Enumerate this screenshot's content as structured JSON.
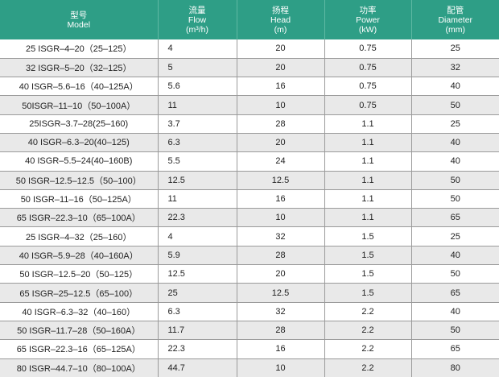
{
  "headers": {
    "model": {
      "cn": "型号",
      "en": "Model",
      "unit": ""
    },
    "flow": {
      "cn": "流量",
      "en": "Flow",
      "unit": "(m³/h)"
    },
    "head": {
      "cn": "扬程",
      "en": "Head",
      "unit": "(m)"
    },
    "power": {
      "cn": "功率",
      "en": "Power",
      "unit": "(kW)"
    },
    "diameter": {
      "cn": "配管",
      "en": "Diameter",
      "unit": "(mm)"
    }
  },
  "rows": [
    {
      "model": "25 ISGR–4–20（25–125）",
      "flow": "4",
      "head": "20",
      "power": "0.75",
      "diameter": "25"
    },
    {
      "model": "32 ISGR–5–20（32–125）",
      "flow": "5",
      "head": "20",
      "power": "0.75",
      "diameter": "32"
    },
    {
      "model": "40 ISGR–5.6–16（40–125A）",
      "flow": "5.6",
      "head": "16",
      "power": "0.75",
      "diameter": "40"
    },
    {
      "model": "50ISGR–11–10（50–100A）",
      "flow": "11",
      "head": "10",
      "power": "0.75",
      "diameter": "50"
    },
    {
      "model": "25ISGR–3.7–28(25–160)",
      "flow": "3.7",
      "head": "28",
      "power": "1.1",
      "diameter": "25"
    },
    {
      "model": "40 ISGR–6.3–20(40–125)",
      "flow": "6.3",
      "head": "20",
      "power": "1.1",
      "diameter": "40"
    },
    {
      "model": "40 ISGR–5.5–24(40–160B)",
      "flow": "5.5",
      "head": "24",
      "power": "1.1",
      "diameter": "40"
    },
    {
      "model": "50 ISGR–12.5–12.5（50–100）",
      "flow": "12.5",
      "head": "12.5",
      "power": "1.1",
      "diameter": "50"
    },
    {
      "model": "50 ISGR–11–16（50–125A）",
      "flow": "11",
      "head": "16",
      "power": "1.1",
      "diameter": "50"
    },
    {
      "model": "65 ISGR–22.3–10（65–100A）",
      "flow": "22.3",
      "head": "10",
      "power": "1.1",
      "diameter": "65"
    },
    {
      "model": "25 ISGR–4–32（25–160）",
      "flow": "4",
      "head": "32",
      "power": "1.5",
      "diameter": "25"
    },
    {
      "model": "40 ISGR–5.9–28（40–160A）",
      "flow": "5.9",
      "head": "28",
      "power": "1.5",
      "diameter": "40"
    },
    {
      "model": "50 ISGR–12.5–20（50–125）",
      "flow": "12.5",
      "head": "20",
      "power": "1.5",
      "diameter": "50"
    },
    {
      "model": "65 ISGR–25–12.5（65–100）",
      "flow": "25",
      "head": "12.5",
      "power": "1.5",
      "diameter": "65"
    },
    {
      "model": "40 ISGR–6.3–32（40–160）",
      "flow": "6.3",
      "head": "32",
      "power": "2.2",
      "diameter": "40"
    },
    {
      "model": "50 ISGR–11.7–28（50–160A）",
      "flow": "11.7",
      "head": "28",
      "power": "2.2",
      "diameter": "50"
    },
    {
      "model": "65 ISGR–22.3–16（65–125A）",
      "flow": "22.3",
      "head": "16",
      "power": "2.2",
      "diameter": "65"
    },
    {
      "model": "80 ISGR–44.7–10（80–100A）",
      "flow": "44.7",
      "head": "10",
      "power": "2.2",
      "diameter": "80"
    }
  ],
  "colors": {
    "header_bg": "#2e9e86",
    "header_text": "#ffffff",
    "stripe": "#e9e9e9",
    "grid": "#9a9a9a"
  }
}
